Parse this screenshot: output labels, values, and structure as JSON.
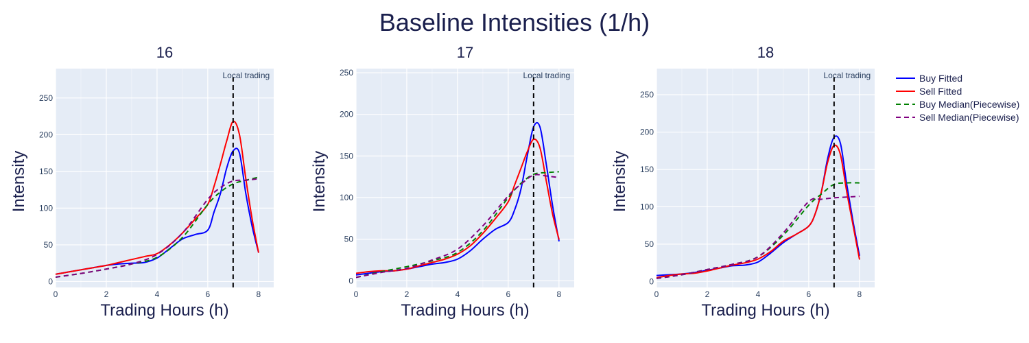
{
  "figure": {
    "title": "Baseline Intensities (1/h)"
  },
  "legend": {
    "placement": "right",
    "items": [
      {
        "label": "Buy Fitted",
        "color": "#0000ff",
        "dash": "solid"
      },
      {
        "label": "Sell Fitted",
        "color": "#ff0000",
        "dash": "solid"
      },
      {
        "label": "Buy Median(Piecewise)",
        "color": "#008000",
        "dash": "dashed"
      },
      {
        "label": "Sell Median(Piecewise)",
        "color": "#800080",
        "dash": "dashed"
      }
    ]
  },
  "chart_data": [
    {
      "type": "line",
      "title": "16",
      "xlabel": "Trading Hours (h)",
      "ylabel": "Intensity",
      "xlim": [
        0,
        8.6
      ],
      "ylim": [
        -8,
        290
      ],
      "xticks": [
        0,
        2,
        4,
        6,
        8
      ],
      "yticks": [
        0,
        50,
        100,
        150,
        200,
        250
      ],
      "vline": {
        "x": 7,
        "label": "Local trading"
      },
      "series": [
        {
          "name": "Buy Fitted",
          "color": "#0000ff",
          "dash": "solid",
          "x": [
            0,
            0.5,
            1,
            1.5,
            2,
            2.5,
            3,
            3.5,
            4,
            4.5,
            5,
            5.5,
            6,
            6.25,
            6.5,
            6.75,
            7,
            7.25,
            7.5,
            7.75,
            8
          ],
          "y": [
            10,
            13,
            16,
            19,
            22,
            24,
            25,
            26,
            32,
            45,
            58,
            64,
            70,
            95,
            120,
            155,
            178,
            175,
            120,
            75,
            40
          ]
        },
        {
          "name": "Sell Fitted",
          "color": "#ff0000",
          "dash": "solid",
          "x": [
            0,
            0.5,
            1,
            1.5,
            2,
            2.5,
            3,
            3.5,
            4,
            4.5,
            5,
            5.5,
            6,
            6.25,
            6.5,
            6.75,
            7,
            7.25,
            7.5,
            7.75,
            8
          ],
          "y": [
            10,
            13,
            16,
            19,
            22,
            26,
            30,
            34,
            38,
            50,
            66,
            85,
            105,
            130,
            160,
            192,
            218,
            200,
            140,
            85,
            40
          ]
        },
        {
          "name": "Buy Median(Piecewise)",
          "color": "#008000",
          "dash": "dashed",
          "x": [
            0,
            1,
            2,
            3,
            4,
            5,
            6,
            6.5,
            7,
            7.5,
            8
          ],
          "y": [
            6,
            11,
            17,
            24,
            33,
            60,
            105,
            122,
            133,
            138,
            142
          ]
        },
        {
          "name": "Sell Median(Piecewise)",
          "color": "#800080",
          "dash": "dashed",
          "x": [
            0,
            1,
            2,
            3,
            4,
            5,
            6,
            6.5,
            7,
            7.5,
            8
          ],
          "y": [
            6,
            11,
            17,
            24,
            37,
            66,
            112,
            128,
            137,
            138,
            140
          ]
        }
      ]
    },
    {
      "type": "line",
      "title": "17",
      "xlabel": "Trading Hours (h)",
      "ylabel": "Intensity",
      "xlim": [
        0,
        8.6
      ],
      "ylim": [
        -8,
        255
      ],
      "xticks": [
        0,
        2,
        4,
        6,
        8
      ],
      "yticks": [
        0,
        50,
        100,
        150,
        200,
        250
      ],
      "vline": {
        "x": 7,
        "label": "Local trading"
      },
      "series": [
        {
          "name": "Buy Fitted",
          "color": "#0000ff",
          "dash": "solid",
          "x": [
            0,
            0.5,
            1,
            1.5,
            2,
            2.5,
            3,
            3.5,
            4,
            4.5,
            5,
            5.5,
            6,
            6.25,
            6.5,
            6.75,
            7,
            7.25,
            7.5,
            7.75,
            8
          ],
          "y": [
            7,
            9,
            11,
            12,
            14,
            17,
            20,
            22,
            26,
            36,
            50,
            62,
            70,
            85,
            110,
            150,
            185,
            185,
            140,
            90,
            48
          ]
        },
        {
          "name": "Sell Fitted",
          "color": "#ff0000",
          "dash": "solid",
          "x": [
            0,
            0.5,
            1,
            1.5,
            2,
            2.5,
            3,
            3.5,
            4,
            4.5,
            5,
            5.5,
            6,
            6.25,
            6.5,
            6.75,
            7,
            7.25,
            7.5,
            7.75,
            8
          ],
          "y": [
            9,
            11,
            12,
            12,
            14,
            18,
            22,
            26,
            32,
            42,
            57,
            75,
            95,
            115,
            135,
            155,
            170,
            160,
            120,
            80,
            50
          ]
        },
        {
          "name": "Buy Median(Piecewise)",
          "color": "#008000",
          "dash": "dashed",
          "x": [
            0,
            1,
            2,
            3,
            4,
            5,
            6,
            6.5,
            7,
            7.5,
            8
          ],
          "y": [
            4,
            11,
            17,
            24,
            34,
            60,
            100,
            117,
            128,
            130,
            131
          ]
        },
        {
          "name": "Sell Median(Piecewise)",
          "color": "#800080",
          "dash": "dashed",
          "x": [
            0,
            1,
            2,
            3,
            4,
            5,
            6,
            6.5,
            7,
            7.5,
            8
          ],
          "y": [
            4,
            10,
            15,
            25,
            38,
            66,
            102,
            116,
            127,
            126,
            124
          ]
        }
      ]
    },
    {
      "type": "line",
      "title": "18",
      "xlabel": "Trading Hours (h)",
      "ylabel": "Intensity",
      "xlim": [
        0,
        8.6
      ],
      "ylim": [
        -8,
        285
      ],
      "xticks": [
        0,
        2,
        4,
        6,
        8
      ],
      "yticks": [
        0,
        50,
        100,
        150,
        200,
        250
      ],
      "vline": {
        "x": 7,
        "label": "Local trading"
      },
      "series": [
        {
          "name": "Buy Fitted",
          "color": "#0000ff",
          "dash": "solid",
          "x": [
            0,
            0.5,
            1,
            1.5,
            2,
            2.5,
            3,
            3.5,
            4,
            4.5,
            5,
            5.5,
            6,
            6.25,
            6.5,
            6.75,
            7,
            7.25,
            7.5,
            7.75,
            8
          ],
          "y": [
            8,
            9,
            10,
            12,
            15,
            18,
            21,
            22,
            26,
            38,
            52,
            63,
            74,
            90,
            120,
            165,
            193,
            185,
            130,
            80,
            35
          ]
        },
        {
          "name": "Sell Fitted",
          "color": "#ff0000",
          "dash": "solid",
          "x": [
            0,
            0.5,
            1,
            1.5,
            2,
            2.5,
            3,
            3.5,
            4,
            4.5,
            5,
            5.5,
            6,
            6.25,
            6.5,
            6.75,
            7,
            7.25,
            7.5,
            7.75,
            8
          ],
          "y": [
            5,
            8,
            10,
            11,
            14,
            18,
            22,
            25,
            30,
            40,
            54,
            63,
            74,
            90,
            120,
            160,
            182,
            170,
            120,
            75,
            30
          ]
        },
        {
          "name": "Buy Median(Piecewise)",
          "color": "#008000",
          "dash": "dashed",
          "x": [
            0,
            1,
            2,
            3,
            4,
            5,
            6,
            6.5,
            7,
            7.5,
            8
          ],
          "y": [
            4,
            9,
            16,
            23,
            33,
            62,
            102,
            117,
            130,
            132,
            132
          ]
        },
        {
          "name": "Sell Median(Piecewise)",
          "color": "#800080",
          "dash": "dashed",
          "x": [
            0,
            1,
            2,
            3,
            4,
            5,
            6,
            6.5,
            7,
            7.5,
            8
          ],
          "y": [
            4,
            9,
            16,
            23,
            33,
            65,
            107,
            110,
            112,
            113,
            114
          ]
        }
      ]
    }
  ]
}
